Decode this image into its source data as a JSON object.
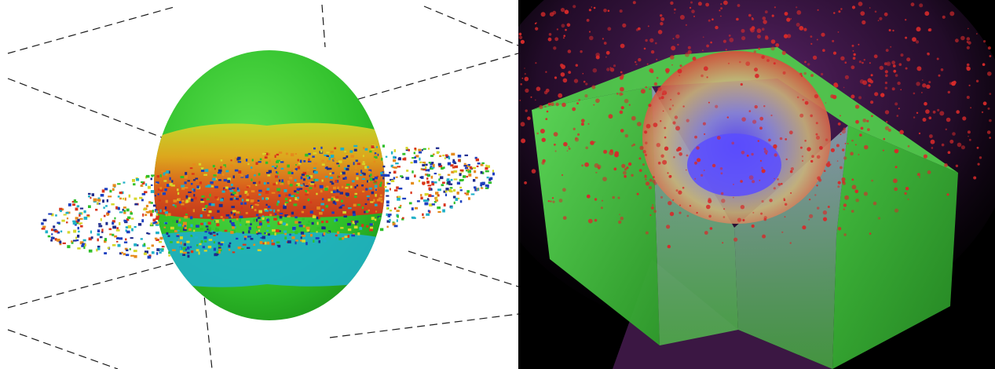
{
  "figure": {
    "panels": [
      {
        "id": "left",
        "subject": "particle-sphere-disk",
        "background": "#ffffff",
        "grid_line_color": "#1a1a1a",
        "sphere_color": "#2fbf2a",
        "band_colors": [
          "#d6d62a",
          "#e58a1c",
          "#d9341a",
          "#1c3fbf",
          "#1fb0c7"
        ],
        "particle_colors": [
          "#1c3fbf",
          "#1fb0c7",
          "#d9341a",
          "#e58a1c",
          "#d6d62a",
          "#2fbf2a",
          "#1e2a8c"
        ]
      },
      {
        "id": "right",
        "subject": "impact-crater-cutaway-block",
        "background": "#000000",
        "block_color": "#3fcf3a",
        "crater_inner_color": "#6a5cff",
        "ejecta_color": "#d62a2a",
        "glow_color": "#6b2a7a"
      }
    ]
  }
}
